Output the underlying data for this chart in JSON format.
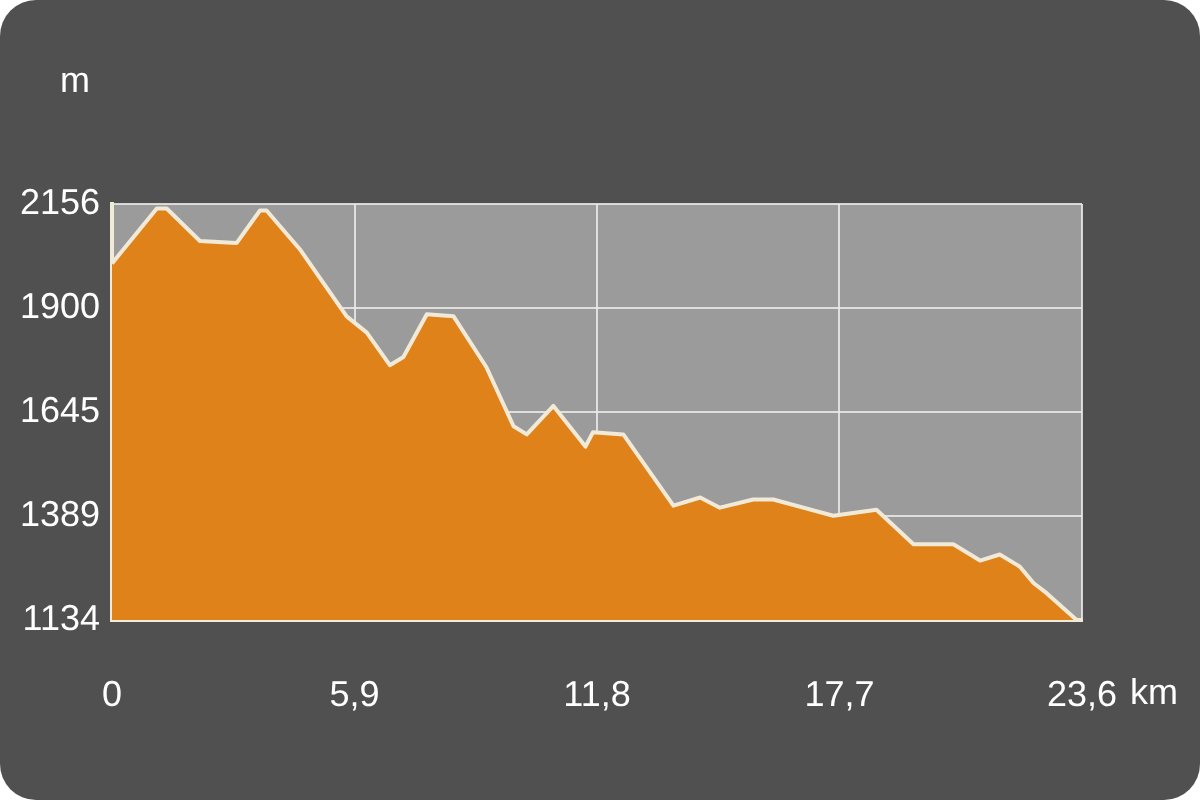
{
  "chart_data": {
    "type": "area",
    "xlabel": "km",
    "ylabel": "m",
    "x": [
      0,
      1.09,
      1.33,
      2.14,
      3.03,
      3.6,
      3.76,
      4.57,
      5.71,
      6.2,
      6.76,
      7.09,
      7.66,
      8.31,
      9.11,
      9.77,
      10.09,
      10.74,
      11.52,
      11.7,
      12.44,
      13.66,
      14.31,
      14.79,
      15.6,
      16.09,
      17.55,
      18.6,
      19.5,
      20.47,
      21.12,
      21.6,
      22.09,
      22.42,
      22.74,
      23.47,
      23.6
    ],
    "values": [
      2010,
      2145,
      2145,
      2065,
      2060,
      2140,
      2140,
      2045,
      1880,
      1840,
      1760,
      1780,
      1885,
      1880,
      1755,
      1610,
      1590,
      1660,
      1560,
      1595,
      1590,
      1415,
      1435,
      1410,
      1430,
      1430,
      1390,
      1405,
      1320,
      1320,
      1280,
      1295,
      1265,
      1225,
      1200,
      1134,
      1134
    ],
    "color": "#e0821a",
    "xlim": [
      0,
      23.6
    ],
    "xticks": [
      0,
      {
        "value": 5.9,
        "label": "5,9"
      },
      {
        "value": 11.8,
        "label": "11,8"
      },
      {
        "value": 17.7,
        "label": "17,7"
      },
      {
        "value": 23.6,
        "label": "23,6"
      }
    ],
    "ylim": [
      1134,
      2156
    ],
    "yticks": [
      1134,
      1389,
      1645,
      1900,
      2156
    ],
    "grid": true
  }
}
